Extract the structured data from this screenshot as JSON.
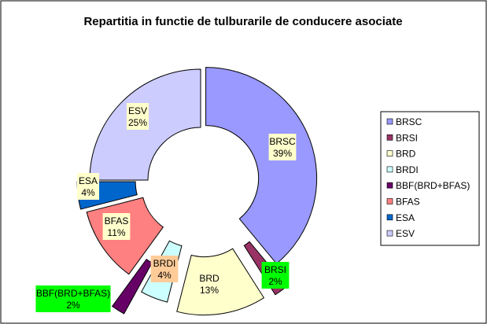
{
  "chart_data": {
    "type": "pie",
    "variant": "exploded-doughnut",
    "title": "Repartitia in functie de tulburarile de conducere asociate",
    "categories": [
      "BRSC",
      "BRSI",
      "BRD",
      "BRDI",
      "BBF(BRD+BFAS)",
      "BFAS",
      "ESA",
      "ESV"
    ],
    "values": [
      39,
      2,
      13,
      4,
      2,
      11,
      4,
      25
    ],
    "value_labels": [
      "39%",
      "2%",
      "13%",
      "4%",
      "2%",
      "11%",
      "4%",
      "25%"
    ],
    "colors": [
      "#9999FF",
      "#993366",
      "#FFFFCC",
      "#CCFFFF",
      "#660066",
      "#FF8080",
      "#0066CC",
      "#CCCCFF"
    ],
    "label_backgrounds": [
      "#FFFFCC",
      "#00FF00",
      "#FFFFCC",
      "#FFCC99",
      "#00FF00",
      "#FFFFCC",
      "#FFFFCC",
      "#FFFFCC"
    ],
    "legend": {
      "placement": "right",
      "items": [
        "BRSC",
        "BRSI",
        "BRD",
        "BRDI",
        "BBF(BRD+BFAS)",
        "BFAS",
        "ESA",
        "ESV"
      ]
    },
    "grid": false
  }
}
